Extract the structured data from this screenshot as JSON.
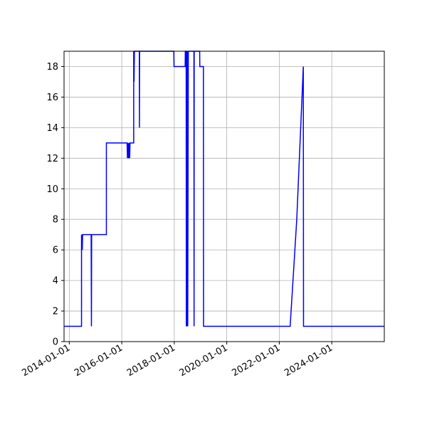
{
  "chart_data": {
    "type": "line",
    "title": "",
    "xlabel": "",
    "ylabel": "",
    "x_type": "date",
    "xlim": [
      "2013-10-20",
      "2026-01-01"
    ],
    "ylim": [
      0,
      19
    ],
    "x_ticks": [
      "2014-01-01",
      "2016-01-01",
      "2018-01-01",
      "2020-01-01",
      "2022-01-01",
      "2024-01-01"
    ],
    "y_ticks": [
      0,
      2,
      4,
      6,
      8,
      10,
      12,
      14,
      16,
      18
    ],
    "grid": true,
    "legend": "none",
    "series": [
      {
        "color": "#0000ff",
        "points": [
          [
            "2013-10-20",
            1
          ],
          [
            "2014-06-20",
            1
          ],
          [
            "2014-06-20",
            7
          ],
          [
            "2014-07-01",
            6
          ],
          [
            "2014-07-05",
            7
          ],
          [
            "2014-11-01",
            7
          ],
          [
            "2014-11-05",
            1
          ],
          [
            "2014-11-08",
            7
          ],
          [
            "2015-06-01",
            7
          ],
          [
            "2015-06-01",
            13
          ],
          [
            "2016-03-15",
            13
          ],
          [
            "2016-03-20",
            12
          ],
          [
            "2016-03-25",
            13
          ],
          [
            "2016-04-05",
            12
          ],
          [
            "2016-04-10",
            13
          ],
          [
            "2016-04-20",
            12
          ],
          [
            "2016-04-25",
            13
          ],
          [
            "2016-06-15",
            13
          ],
          [
            "2016-06-15",
            19
          ],
          [
            "2016-06-20",
            17
          ],
          [
            "2016-06-25",
            19
          ],
          [
            "2016-09-01",
            19
          ],
          [
            "2016-09-03",
            14
          ],
          [
            "2016-09-05",
            19
          ],
          [
            "2017-12-25",
            19
          ],
          [
            "2017-12-28",
            18
          ],
          [
            "2018-06-01",
            18
          ],
          [
            "2018-06-03",
            19
          ],
          [
            "2018-06-15",
            19
          ],
          [
            "2018-06-17",
            1
          ],
          [
            "2018-06-25",
            19
          ],
          [
            "2018-06-27",
            1
          ],
          [
            "2018-07-05",
            19
          ],
          [
            "2018-07-07",
            1
          ],
          [
            "2018-07-15",
            19
          ],
          [
            "2018-10-01",
            19
          ],
          [
            "2018-10-03",
            1
          ],
          [
            "2018-10-05",
            19
          ],
          [
            "2018-12-20",
            19
          ],
          [
            "2018-12-22",
            18
          ],
          [
            "2019-02-10",
            18
          ],
          [
            "2019-02-12",
            1
          ],
          [
            "2022-06-01",
            1
          ],
          [
            "2022-09-01",
            8
          ],
          [
            "2022-12-01",
            18
          ],
          [
            "2022-12-04",
            1
          ],
          [
            "2026-01-01",
            1
          ]
        ]
      }
    ]
  }
}
